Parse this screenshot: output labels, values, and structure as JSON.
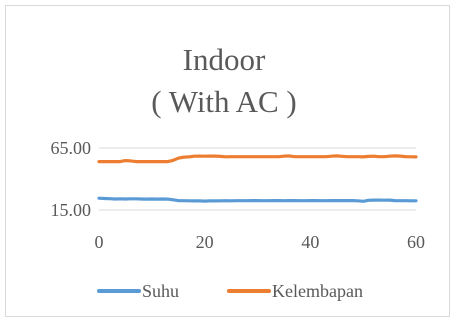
{
  "chart_data": {
    "type": "line",
    "title_lines": [
      "Indoor",
      "( With AC )"
    ],
    "xlabel": "",
    "ylabel": "",
    "xlim": [
      0,
      60
    ],
    "ylim": [
      15,
      65
    ],
    "x_ticks": [
      "0",
      "20",
      "40",
      "60"
    ],
    "y_ticks": [
      "15.00",
      "65.00"
    ],
    "grid": "horizontal",
    "legend_position": "bottom",
    "series": [
      {
        "name": "Suhu",
        "color": "#5B9BD5",
        "x": [
          0,
          1,
          2,
          3,
          4,
          5,
          6,
          7,
          8,
          9,
          10,
          11,
          12,
          13,
          14,
          15,
          16,
          17,
          18,
          19,
          20,
          21,
          22,
          23,
          24,
          25,
          26,
          27,
          28,
          29,
          30,
          31,
          32,
          33,
          34,
          35,
          36,
          37,
          38,
          39,
          40,
          41,
          42,
          43,
          44,
          45,
          46,
          47,
          48,
          49,
          50,
          51,
          52,
          53,
          54,
          55,
          56,
          57,
          58,
          59,
          60
        ],
        "values": [
          24.5,
          24.3,
          24.1,
          23.9,
          24.0,
          23.9,
          24.0,
          24.0,
          23.9,
          23.8,
          23.9,
          23.8,
          23.9,
          23.8,
          23.2,
          22.6,
          22.5,
          22.4,
          22.3,
          22.3,
          22.2,
          22.3,
          22.3,
          22.4,
          22.5,
          22.4,
          22.5,
          22.5,
          22.5,
          22.6,
          22.6,
          22.5,
          22.5,
          22.6,
          22.6,
          22.5,
          22.6,
          22.6,
          22.5,
          22.5,
          22.6,
          22.6,
          22.5,
          22.5,
          22.6,
          22.6,
          22.6,
          22.6,
          22.6,
          22.4,
          22.0,
          22.8,
          23.0,
          23.0,
          22.9,
          23.0,
          22.6,
          22.5,
          22.5,
          22.4,
          22.4
        ]
      },
      {
        "name": "Kelembapan",
        "color": "#ED7D31",
        "x": [
          0,
          1,
          2,
          3,
          4,
          5,
          6,
          7,
          8,
          9,
          10,
          11,
          12,
          13,
          14,
          15,
          16,
          17,
          18,
          19,
          20,
          21,
          22,
          23,
          24,
          25,
          26,
          27,
          28,
          29,
          30,
          31,
          32,
          33,
          34,
          35,
          36,
          37,
          38,
          39,
          40,
          41,
          42,
          43,
          44,
          45,
          46,
          47,
          48,
          49,
          50,
          51,
          52,
          53,
          54,
          55,
          56,
          57,
          58,
          59,
          60
        ],
        "values": [
          54.0,
          54.0,
          54.0,
          54.0,
          54.0,
          54.8,
          54.6,
          54.0,
          54.0,
          54.0,
          54.0,
          54.0,
          54.0,
          54.0,
          55.0,
          56.8,
          57.6,
          57.8,
          58.4,
          58.5,
          58.4,
          58.5,
          58.5,
          58.2,
          57.9,
          58.0,
          58.0,
          58.0,
          58.0,
          58.0,
          58.0,
          58.0,
          58.0,
          58.0,
          58.0,
          58.4,
          58.6,
          58.0,
          58.0,
          58.0,
          58.0,
          58.0,
          58.0,
          58.0,
          58.4,
          58.6,
          58.3,
          58.0,
          58.0,
          58.0,
          57.8,
          58.2,
          58.4,
          58.0,
          58.0,
          58.4,
          58.6,
          58.5,
          58.1,
          57.9,
          57.8
        ]
      }
    ]
  }
}
